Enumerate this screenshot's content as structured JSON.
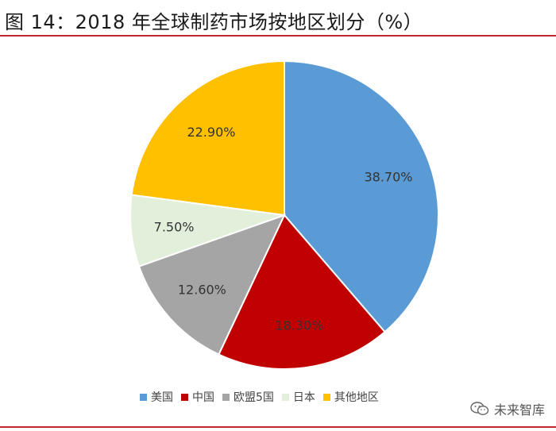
{
  "title": "图 14：2018 年全球制药市场按地区划分（%）",
  "chart_data": {
    "type": "pie",
    "slices": [
      {
        "name": "美国",
        "value": 38.7,
        "label": "38.70%",
        "color": "#5b9bd5"
      },
      {
        "name": "中国",
        "value": 18.3,
        "label": "18.30%",
        "color": "#c00000"
      },
      {
        "name": "欧盟5国",
        "value": 12.6,
        "label": "12.60%",
        "color": "#a5a5a5"
      },
      {
        "name": "日本",
        "value": 7.5,
        "label": "7.50%",
        "color": "#e2efda"
      },
      {
        "name": "其他地区",
        "value": 22.9,
        "label": "22.90%",
        "color": "#ffc000"
      }
    ],
    "start": "12 o'clock",
    "direction": "clockwise",
    "legend_position": "bottom"
  },
  "watermark": {
    "text": "未来智库",
    "icon": "wechat-icon"
  }
}
